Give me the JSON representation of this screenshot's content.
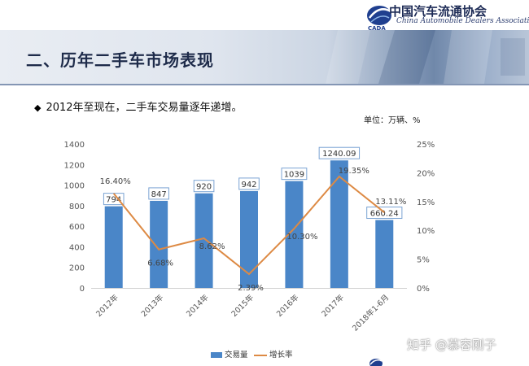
{
  "header": {
    "org_name": "中国汽车流通协会",
    "org_name_en": "China Automobile Dealers Association",
    "logo_text": "CADA"
  },
  "section_title": "二、历年二手车市场表现",
  "bullet": "2012年至现在，二手车交易量逐年递增。",
  "unit_label": "单位：万辆、%",
  "legend": {
    "bar_label": "交易量",
    "line_label": "增长率"
  },
  "watermark": "知乎 @慕容刚子",
  "colors": {
    "bar": "#4a86c8",
    "line": "#dd8a44",
    "bar_label_border": "#7aa3d3"
  },
  "chart_data": {
    "type": "bar",
    "categories": [
      "2012年",
      "2013年",
      "2014年",
      "2015年",
      "2016年",
      "2017年",
      "2018年1-6月"
    ],
    "series": [
      {
        "name": "交易量",
        "type": "bar",
        "axis": "left",
        "values": [
          794,
          847,
          920,
          942,
          1039,
          1240.09,
          660.24
        ],
        "labels": [
          "794",
          "847",
          "920",
          "942",
          "1039",
          "1240.09",
          "660.24"
        ]
      },
      {
        "name": "增长率",
        "type": "line",
        "axis": "right",
        "values": [
          16.4,
          6.68,
          8.62,
          2.39,
          10.3,
          19.35,
          13.11
        ],
        "labels": [
          "16.40%",
          "6.68%",
          "8.62%",
          "2.39%",
          "10.30%",
          "19.35%",
          "13.11%"
        ]
      }
    ],
    "ylim_left": [
      0,
      1400
    ],
    "yticks_left": [
      "0",
      "200",
      "400",
      "600",
      "800",
      "1000",
      "1200",
      "1400"
    ],
    "ylim_right": [
      0,
      25
    ],
    "yticks_right": [
      "0%",
      "5%",
      "10%",
      "15%",
      "20%",
      "25%"
    ],
    "grid": false,
    "legend_position": "bottom"
  }
}
